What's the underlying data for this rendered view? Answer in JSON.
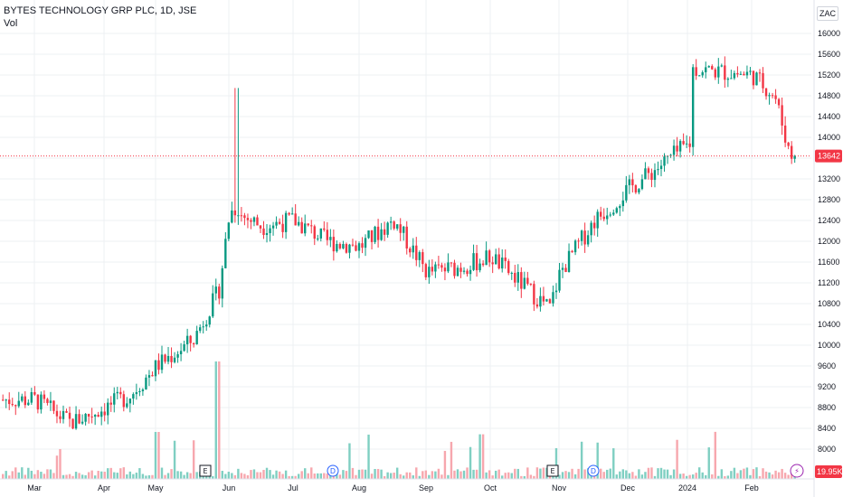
{
  "header": {
    "title": "BYTES TECHNOLOGY GRP PLC, 1D, JSE",
    "volume_label": "Vol",
    "currency": "ZAC"
  },
  "price_badge": {
    "value": "13642",
    "color": "#f23645"
  },
  "volume_badge": {
    "value": "19.95K",
    "color": "#f23645"
  },
  "colors": {
    "up": "#089981",
    "down": "#f23645",
    "up_vol": "#7fcfc2",
    "down_vol": "#f7a7ae",
    "grid": "#eef0f3"
  },
  "events": [
    {
      "type": "E",
      "month": "May",
      "label": "E"
    },
    {
      "type": "D",
      "month": "Jul",
      "label": "D"
    },
    {
      "type": "E",
      "month": "Oct",
      "label": "E"
    },
    {
      "type": "D",
      "month": "Nov",
      "label": "D"
    },
    {
      "type": "flash",
      "month": "Feb",
      "label": "⚡"
    }
  ],
  "chart_data": {
    "type": "candlestick",
    "x_ticks": [
      "Mar",
      "Apr",
      "May",
      "Jun",
      "Jul",
      "Aug",
      "Sep",
      "Oct",
      "Nov",
      "Dec",
      "2024",
      "Feb"
    ],
    "y_ticks": [
      8000,
      8400,
      8800,
      9200,
      9600,
      10000,
      10400,
      10800,
      11200,
      11600,
      12000,
      12400,
      12800,
      13200,
      13600,
      14000,
      14400,
      14800,
      15200,
      15600,
      16000
    ],
    "ylim": [
      7750,
      16300
    ],
    "last_price": 13642,
    "price_path": [
      {
        "month": "Mar",
        "price": 8950
      },
      {
        "month": "Mar-mid",
        "price": 8500
      },
      {
        "month": "Apr",
        "price": 8800
      },
      {
        "month": "Apr-mid",
        "price": 9050
      },
      {
        "month": "May",
        "price": 9600
      },
      {
        "month": "May-mid",
        "price": 10100
      },
      {
        "month": "May-end",
        "price": 11050
      },
      {
        "month": "Jun",
        "price": 12600
      },
      {
        "month": "Jun-mid",
        "price": 12300
      },
      {
        "month": "Jul",
        "price": 12400
      },
      {
        "month": "Jul-mid",
        "price": 12000
      },
      {
        "month": "Aug",
        "price": 11900
      },
      {
        "month": "Aug-mid",
        "price": 12400
      },
      {
        "month": "Sep",
        "price": 11400
      },
      {
        "month": "Sep-mid",
        "price": 11500
      },
      {
        "month": "Oct",
        "price": 11700
      },
      {
        "month": "Oct-end",
        "price": 10700
      },
      {
        "month": "Nov",
        "price": 11400
      },
      {
        "month": "Nov-mid",
        "price": 12400
      },
      {
        "month": "Dec",
        "price": 13000
      },
      {
        "month": "Dec-mid",
        "price": 13900
      },
      {
        "month": "2024",
        "price": 14000
      },
      {
        "month": "2024-mid",
        "price": 16000
      },
      {
        "month": "Feb",
        "price": 15200
      },
      {
        "month": "Feb-mid",
        "price": 14800
      },
      {
        "month": "Feb-end",
        "price": 13642
      }
    ],
    "volume_spikes": [
      {
        "month": "May",
        "relative": 0.4
      },
      {
        "month": "May-end",
        "relative": 1.0
      },
      {
        "month": "Sep-end",
        "relative": 0.38
      }
    ]
  }
}
